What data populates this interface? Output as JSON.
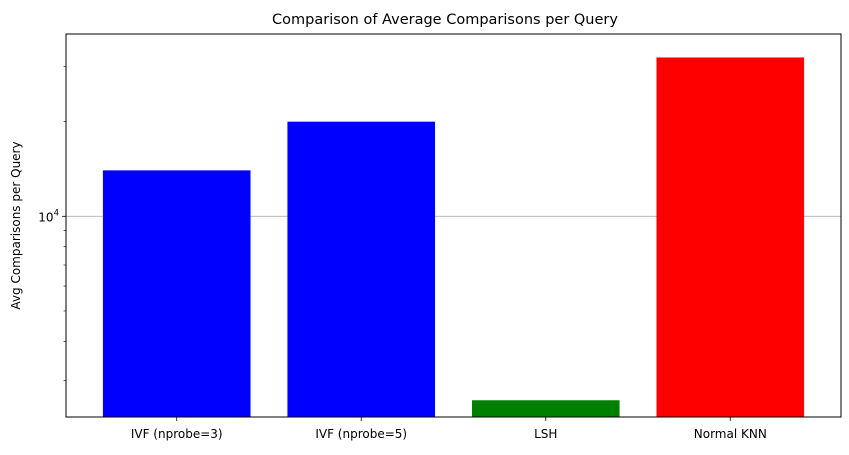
{
  "chart_data": {
    "type": "bar",
    "title": "Comparison of Average Comparisons per Query",
    "xlabel": "",
    "ylabel": "Avg Comparisons per Query",
    "categories": [
      "IVF (nprobe=3)",
      "IVF (nprobe=5)",
      "LSH",
      "Normal KNN"
    ],
    "values": [
      14000,
      20000,
      2600,
      32000
    ],
    "bar_colors": [
      "#0000ff",
      "#0000ff",
      "#008000",
      "#ff0000"
    ],
    "y_scale": "log",
    "ylim": [
      2300,
      38000
    ],
    "y_major_tick": {
      "value": 10000,
      "label_base": "10",
      "label_exp": "4"
    },
    "y_minor_ticks": [
      3000,
      4000,
      5000,
      6000,
      7000,
      8000,
      9000,
      20000,
      30000
    ],
    "grid": "y-major"
  }
}
